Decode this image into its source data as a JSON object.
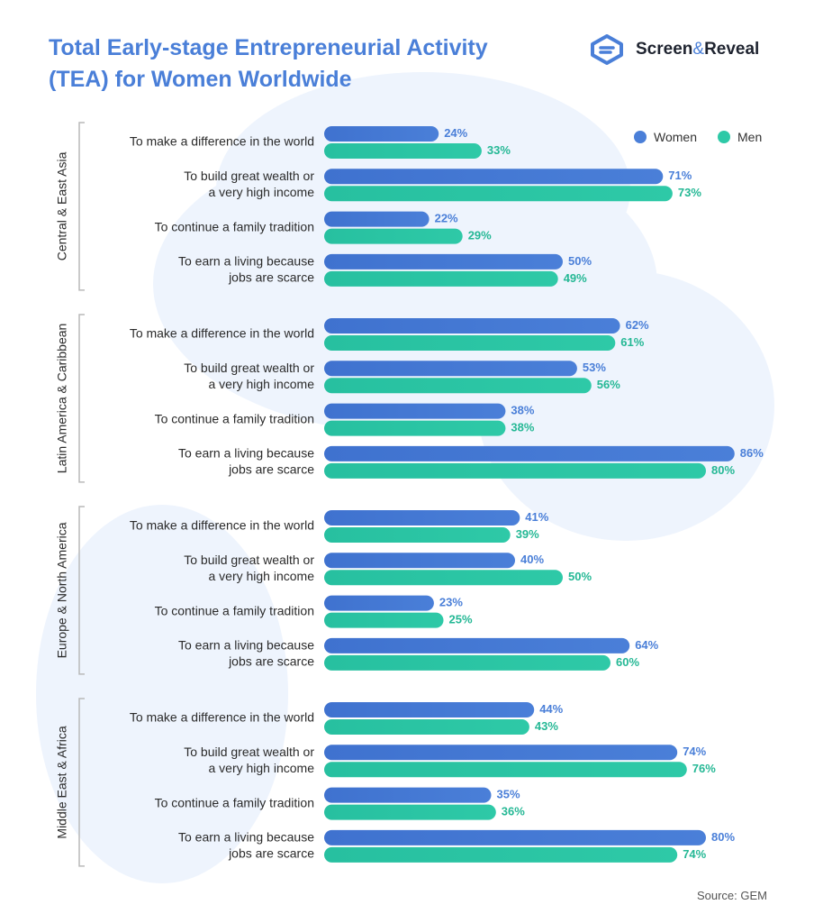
{
  "header": {
    "title_line1": "Total Early-stage Entrepreneurial Activity",
    "title_line2": "(TEA) for Women Worldwide",
    "logo_part1": "Screen",
    "logo_amp": "&",
    "logo_part2": "Reveal",
    "logo_icon": "screen-reveal-logo-icon"
  },
  "footer": {
    "source": "Source: GEM"
  },
  "colors": {
    "title": "#4a7fd8",
    "women": "#4a7fd8",
    "men": "#2ec9a7",
    "group_label": "#2b2b2b"
  },
  "chart_data": {
    "type": "bar",
    "orientation": "horizontal",
    "xlim": [
      0,
      100
    ],
    "value_suffix": "%",
    "legend": {
      "position": "top-right",
      "entries": [
        "Women",
        "Men"
      ]
    },
    "groups": [
      {
        "name": "Central & East Asia",
        "categories": [
          [
            "To make a difference in the world"
          ],
          [
            "To build great wealth or",
            "a very high income"
          ],
          [
            "To continue a family tradition"
          ],
          [
            "To earn a living because",
            "jobs are scarce"
          ]
        ],
        "series": [
          {
            "name": "Women",
            "values": [
              24,
              71,
              22,
              50
            ]
          },
          {
            "name": "Men",
            "values": [
              33,
              73,
              29,
              49
            ]
          }
        ]
      },
      {
        "name": "Latin America & Caribbean",
        "categories": [
          [
            "To make a difference in the world"
          ],
          [
            "To build great wealth or",
            "a very high income"
          ],
          [
            "To continue a family tradition"
          ],
          [
            "To earn a living because",
            "jobs are scarce"
          ]
        ],
        "series": [
          {
            "name": "Women",
            "values": [
              62,
              53,
              38,
              86
            ]
          },
          {
            "name": "Men",
            "values": [
              61,
              56,
              38,
              80
            ]
          }
        ]
      },
      {
        "name": "Europe & North America",
        "categories": [
          [
            "To make a difference in the world"
          ],
          [
            "To build great wealth or",
            "a very high income"
          ],
          [
            "To continue a family tradition"
          ],
          [
            "To earn a living because",
            "jobs are scarce"
          ]
        ],
        "series": [
          {
            "name": "Women",
            "values": [
              41,
              40,
              23,
              64
            ]
          },
          {
            "name": "Men",
            "values": [
              39,
              50,
              25,
              60
            ]
          }
        ]
      },
      {
        "name": "Middle East & Africa",
        "categories": [
          [
            "To make a difference in the world"
          ],
          [
            "To build great wealth or",
            "a very high income"
          ],
          [
            "To continue a family tradition"
          ],
          [
            "To earn a living because",
            "jobs are scarce"
          ]
        ],
        "series": [
          {
            "name": "Women",
            "values": [
              44,
              74,
              35,
              80
            ]
          },
          {
            "name": "Men",
            "values": [
              43,
              76,
              36,
              74
            ]
          }
        ]
      }
    ]
  }
}
